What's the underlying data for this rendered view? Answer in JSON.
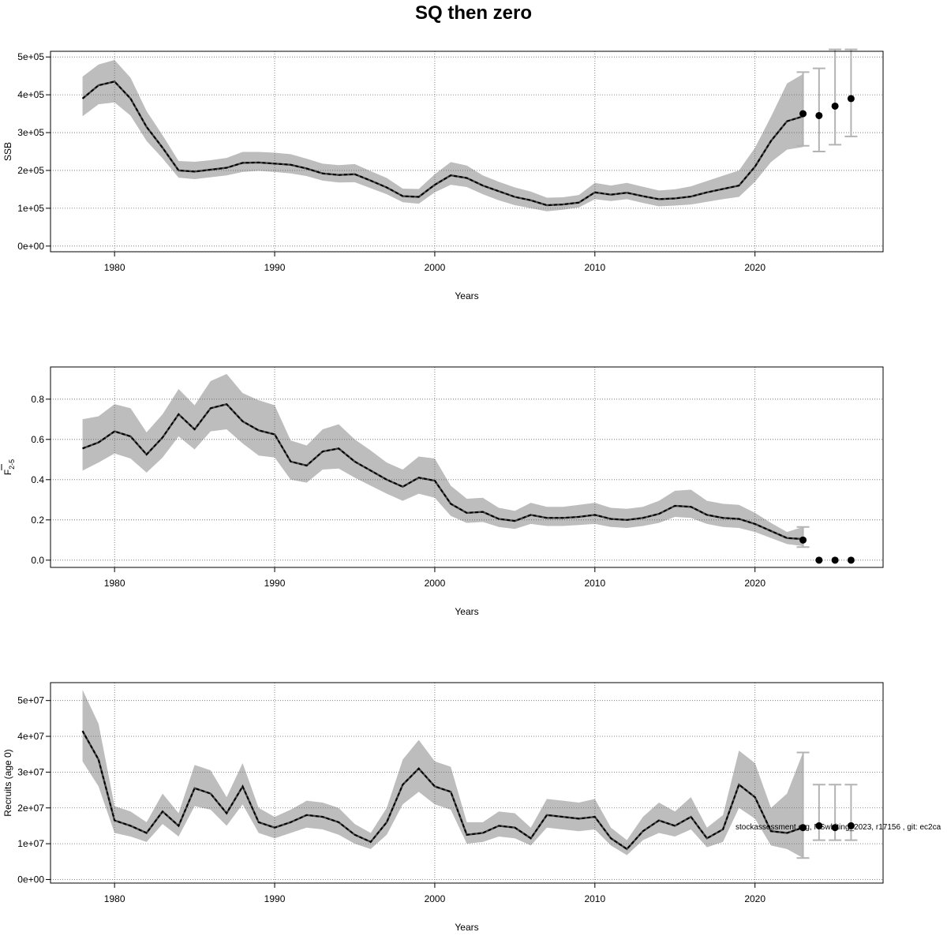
{
  "figure": {
    "title": "SQ then zero",
    "footnote": "stockassessment.org, NSwhiting_2023, r17156 , git: ec2ca"
  },
  "colors": {
    "band": "#bdbdbd",
    "line": "#000000",
    "grid": "#666666",
    "errorbar": "#b3b3b3",
    "point": "#000000"
  },
  "chart_data": [
    {
      "type": "line",
      "id": "ssb",
      "title": "",
      "xlabel": "Years",
      "ylabel": "SSB",
      "xlim": [
        1976,
        2028
      ],
      "ylim": [
        -15000,
        515000
      ],
      "x_ticks": [
        1980,
        1990,
        2000,
        2010,
        2020
      ],
      "x_tick_labels": [
        "1980",
        "1990",
        "2000",
        "2010",
        "2020"
      ],
      "y_ticks": [
        0,
        100000,
        200000,
        300000,
        400000,
        500000
      ],
      "y_tick_labels": [
        "0e+00",
        "1e+05",
        "2e+05",
        "3e+05",
        "4e+05",
        "5e+05"
      ],
      "grid": true,
      "years": [
        1978,
        1979,
        1980,
        1981,
        1982,
        1983,
        1984,
        1985,
        1986,
        1987,
        1988,
        1989,
        1990,
        1991,
        1992,
        1993,
        1994,
        1995,
        1996,
        1997,
        1998,
        1999,
        2000,
        2001,
        2002,
        2003,
        2004,
        2005,
        2006,
        2007,
        2008,
        2009,
        2010,
        2011,
        2012,
        2013,
        2014,
        2015,
        2016,
        2017,
        2018,
        2019,
        2020,
        2021,
        2022,
        2023
      ],
      "estimate": [
        390000,
        425000,
        435000,
        390000,
        315000,
        260000,
        200000,
        197000,
        202000,
        207000,
        220000,
        221000,
        218000,
        215000,
        205000,
        192000,
        188000,
        190000,
        173000,
        155000,
        132000,
        130000,
        162000,
        187000,
        180000,
        160000,
        145000,
        130000,
        121000,
        108000,
        110000,
        115000,
        142000,
        136000,
        141000,
        132000,
        124000,
        126000,
        131000,
        142000,
        151000,
        160000,
        210000,
        278000,
        330000,
        343000
      ],
      "lower": [
        343000,
        375000,
        380000,
        345000,
        278000,
        232000,
        181000,
        177000,
        182000,
        187000,
        196000,
        199000,
        196000,
        192000,
        185000,
        173000,
        168000,
        169000,
        153000,
        137000,
        116000,
        112000,
        142000,
        162000,
        156000,
        137000,
        121000,
        108000,
        100000,
        92000,
        96000,
        102000,
        124000,
        119000,
        124000,
        114000,
        105000,
        107000,
        110000,
        117000,
        124000,
        130000,
        170000,
        222000,
        255000,
        262000
      ],
      "upper": [
        448000,
        480000,
        492000,
        445000,
        357000,
        293000,
        225000,
        223000,
        227000,
        233000,
        249000,
        249000,
        247000,
        243000,
        231000,
        218000,
        214000,
        217000,
        198000,
        180000,
        152000,
        151000,
        190000,
        222000,
        213000,
        187000,
        170000,
        155000,
        144000,
        128000,
        129000,
        135000,
        167000,
        160000,
        167000,
        157000,
        147000,
        150000,
        158000,
        172000,
        186000,
        200000,
        260000,
        342000,
        430000,
        455000
      ],
      "forecast": {
        "years": [
          2023,
          2024,
          2025,
          2026
        ],
        "values": [
          350000,
          345000,
          370000,
          390000
        ],
        "lower": [
          265000,
          250000,
          268000,
          290000
        ],
        "upper": [
          460000,
          470000,
          520000,
          520000
        ]
      }
    },
    {
      "type": "line",
      "id": "fbar",
      "title": "",
      "xlabel": "Years",
      "ylabel_main": "F",
      "ylabel_sub": "2-5",
      "xlim": [
        1976,
        2028
      ],
      "ylim": [
        -0.036,
        0.96
      ],
      "x_ticks": [
        1980,
        1990,
        2000,
        2010,
        2020
      ],
      "x_tick_labels": [
        "1980",
        "1990",
        "2000",
        "2010",
        "2020"
      ],
      "y_ticks": [
        0,
        0.2,
        0.4,
        0.6,
        0.8
      ],
      "y_tick_labels": [
        "0.0",
        "0.2",
        "0.4",
        "0.6",
        "0.8"
      ],
      "grid": true,
      "years": [
        1978,
        1979,
        1980,
        1981,
        1982,
        1983,
        1984,
        1985,
        1986,
        1987,
        1988,
        1989,
        1990,
        1991,
        1992,
        1993,
        1994,
        1995,
        1996,
        1997,
        1998,
        1999,
        2000,
        2001,
        2002,
        2003,
        2004,
        2005,
        2006,
        2007,
        2008,
        2009,
        2010,
        2011,
        2012,
        2013,
        2014,
        2015,
        2016,
        2017,
        2018,
        2019,
        2020,
        2021,
        2022,
        2023
      ],
      "estimate": [
        0.555,
        0.585,
        0.64,
        0.615,
        0.525,
        0.61,
        0.725,
        0.65,
        0.755,
        0.775,
        0.69,
        0.645,
        0.625,
        0.49,
        0.47,
        0.54,
        0.555,
        0.49,
        0.445,
        0.4,
        0.365,
        0.41,
        0.395,
        0.28,
        0.235,
        0.24,
        0.205,
        0.195,
        0.225,
        0.21,
        0.21,
        0.215,
        0.225,
        0.205,
        0.2,
        0.21,
        0.23,
        0.27,
        0.265,
        0.225,
        0.21,
        0.205,
        0.18,
        0.145,
        0.11,
        0.105
      ],
      "lower": [
        0.445,
        0.485,
        0.53,
        0.505,
        0.435,
        0.51,
        0.615,
        0.55,
        0.64,
        0.65,
        0.58,
        0.52,
        0.51,
        0.4,
        0.385,
        0.45,
        0.455,
        0.41,
        0.37,
        0.33,
        0.295,
        0.33,
        0.31,
        0.22,
        0.185,
        0.19,
        0.165,
        0.155,
        0.18,
        0.17,
        0.17,
        0.175,
        0.18,
        0.165,
        0.16,
        0.17,
        0.185,
        0.215,
        0.21,
        0.18,
        0.165,
        0.16,
        0.14,
        0.11,
        0.08,
        0.07
      ],
      "upper": [
        0.7,
        0.715,
        0.775,
        0.755,
        0.635,
        0.725,
        0.85,
        0.77,
        0.89,
        0.925,
        0.83,
        0.795,
        0.77,
        0.595,
        0.57,
        0.65,
        0.675,
        0.6,
        0.545,
        0.485,
        0.45,
        0.515,
        0.505,
        0.37,
        0.305,
        0.31,
        0.26,
        0.245,
        0.285,
        0.265,
        0.265,
        0.275,
        0.285,
        0.26,
        0.255,
        0.265,
        0.295,
        0.345,
        0.35,
        0.295,
        0.28,
        0.275,
        0.235,
        0.185,
        0.14,
        0.165
      ],
      "forecast": {
        "years": [
          2023,
          2024,
          2025,
          2026
        ],
        "values": [
          0.1,
          0,
          0,
          0
        ],
        "lower": [
          0.065,
          0,
          0,
          0
        ],
        "upper": [
          0.165,
          0,
          0,
          0
        ]
      }
    },
    {
      "type": "line",
      "id": "recruits",
      "title": "",
      "xlabel": "Years",
      "ylabel": "Recruits (age 0)",
      "xlim": [
        1976,
        2028
      ],
      "ylim": [
        -1000000,
        55000000
      ],
      "x_ticks": [
        1980,
        1990,
        2000,
        2010,
        2020
      ],
      "x_tick_labels": [
        "1980",
        "1990",
        "2000",
        "2010",
        "2020"
      ],
      "y_ticks": [
        0,
        10000000,
        20000000,
        30000000,
        40000000,
        50000000
      ],
      "y_tick_labels": [
        "0e+00",
        "1e+07",
        "2e+07",
        "3e+07",
        "4e+07",
        "5e+07"
      ],
      "grid": true,
      "years": [
        1978,
        1979,
        1980,
        1981,
        1982,
        1983,
        1984,
        1985,
        1986,
        1987,
        1988,
        1989,
        1990,
        1991,
        1992,
        1993,
        1994,
        1995,
        1996,
        1997,
        1998,
        1999,
        2000,
        2001,
        2002,
        2003,
        2004,
        2005,
        2006,
        2007,
        2008,
        2009,
        2010,
        2011,
        2012,
        2013,
        2014,
        2015,
        2016,
        2017,
        2018,
        2019,
        2020,
        2021,
        2022,
        2023
      ],
      "estimate": [
        41500000,
        33500000,
        16500000,
        15000000,
        13000000,
        19000000,
        15000000,
        25500000,
        24000000,
        18500000,
        26000000,
        16000000,
        14500000,
        16000000,
        18000000,
        17500000,
        16000000,
        12500000,
        10500000,
        16000000,
        26500000,
        31000000,
        26000000,
        24500000,
        12500000,
        13000000,
        15000000,
        14500000,
        11500000,
        18000000,
        17500000,
        17000000,
        17500000,
        11500000,
        8500000,
        13500000,
        16500000,
        15000000,
        17500000,
        11500000,
        14000000,
        26500000,
        23000000,
        13500000,
        13000000,
        14500000
      ],
      "lower": [
        33000000,
        26000000,
        13000000,
        12000000,
        10500000,
        15500000,
        12000000,
        20500000,
        19500000,
        15000000,
        21000000,
        13000000,
        11500000,
        13000000,
        14500000,
        14000000,
        12500000,
        10000000,
        8500000,
        12500000,
        21000000,
        24500000,
        21000000,
        19500000,
        10000000,
        10500000,
        12000000,
        11500000,
        9500000,
        14500000,
        14000000,
        13500000,
        14000000,
        9500000,
        6800000,
        11000000,
        13000000,
        12000000,
        14000000,
        9000000,
        10500000,
        20000000,
        17000000,
        9500000,
        8500000,
        6000000
      ],
      "upper": [
        53000000,
        43500000,
        20500000,
        19000000,
        16000000,
        24000000,
        18500000,
        32000000,
        30500000,
        23000000,
        32500000,
        20000000,
        17500000,
        19500000,
        22000000,
        21500000,
        20000000,
        15500000,
        13000000,
        20000000,
        33500000,
        39000000,
        33000000,
        31500000,
        16000000,
        16000000,
        19000000,
        18500000,
        14500000,
        22500000,
        22000000,
        21500000,
        22500000,
        14500000,
        11000000,
        17500000,
        21500000,
        19000000,
        23000000,
        14500000,
        18000000,
        36000000,
        32500000,
        20000000,
        24000000,
        35500000
      ],
      "forecast": {
        "years": [
          2023,
          2024,
          2025,
          2026
        ],
        "values": [
          14500000,
          15000000,
          14500000,
          15000000
        ],
        "lower": [
          6000000,
          11000000,
          11000000,
          11000000
        ],
        "upper": [
          35500000,
          26500000,
          26500000,
          26500000
        ]
      }
    }
  ]
}
